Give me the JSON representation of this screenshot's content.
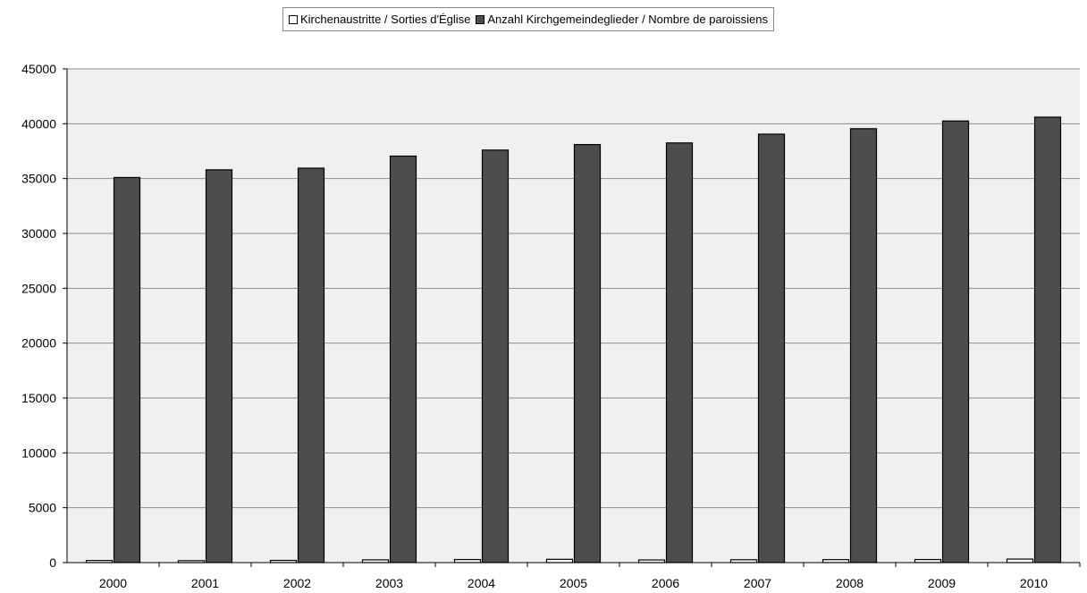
{
  "chart_data": {
    "type": "bar",
    "title": "",
    "xlabel": "",
    "ylabel": "",
    "categories": [
      "2000",
      "2001",
      "2002",
      "2003",
      "2004",
      "2005",
      "2006",
      "2007",
      "2008",
      "2009",
      "2010"
    ],
    "series": [
      {
        "name": "Kirchenaustritte / Sorties d'Église",
        "color": "#ffffff",
        "values": [
          190,
          175,
          200,
          250,
          280,
          300,
          240,
          260,
          270,
          280,
          320
        ]
      },
      {
        "name": "Anzahl Kirchgemeindeglieder / Nombre de paroissiens",
        "color": "#4d4d4d",
        "values": [
          35100,
          35800,
          35950,
          37050,
          37600,
          38100,
          38250,
          39050,
          39550,
          40250,
          40600
        ]
      }
    ],
    "ylim": [
      0,
      45000
    ],
    "yticks": [
      0,
      5000,
      10000,
      15000,
      20000,
      25000,
      30000,
      35000,
      40000,
      45000
    ],
    "grid": true,
    "legend_position": "top-center",
    "plot_background": "#f0f0f0"
  }
}
